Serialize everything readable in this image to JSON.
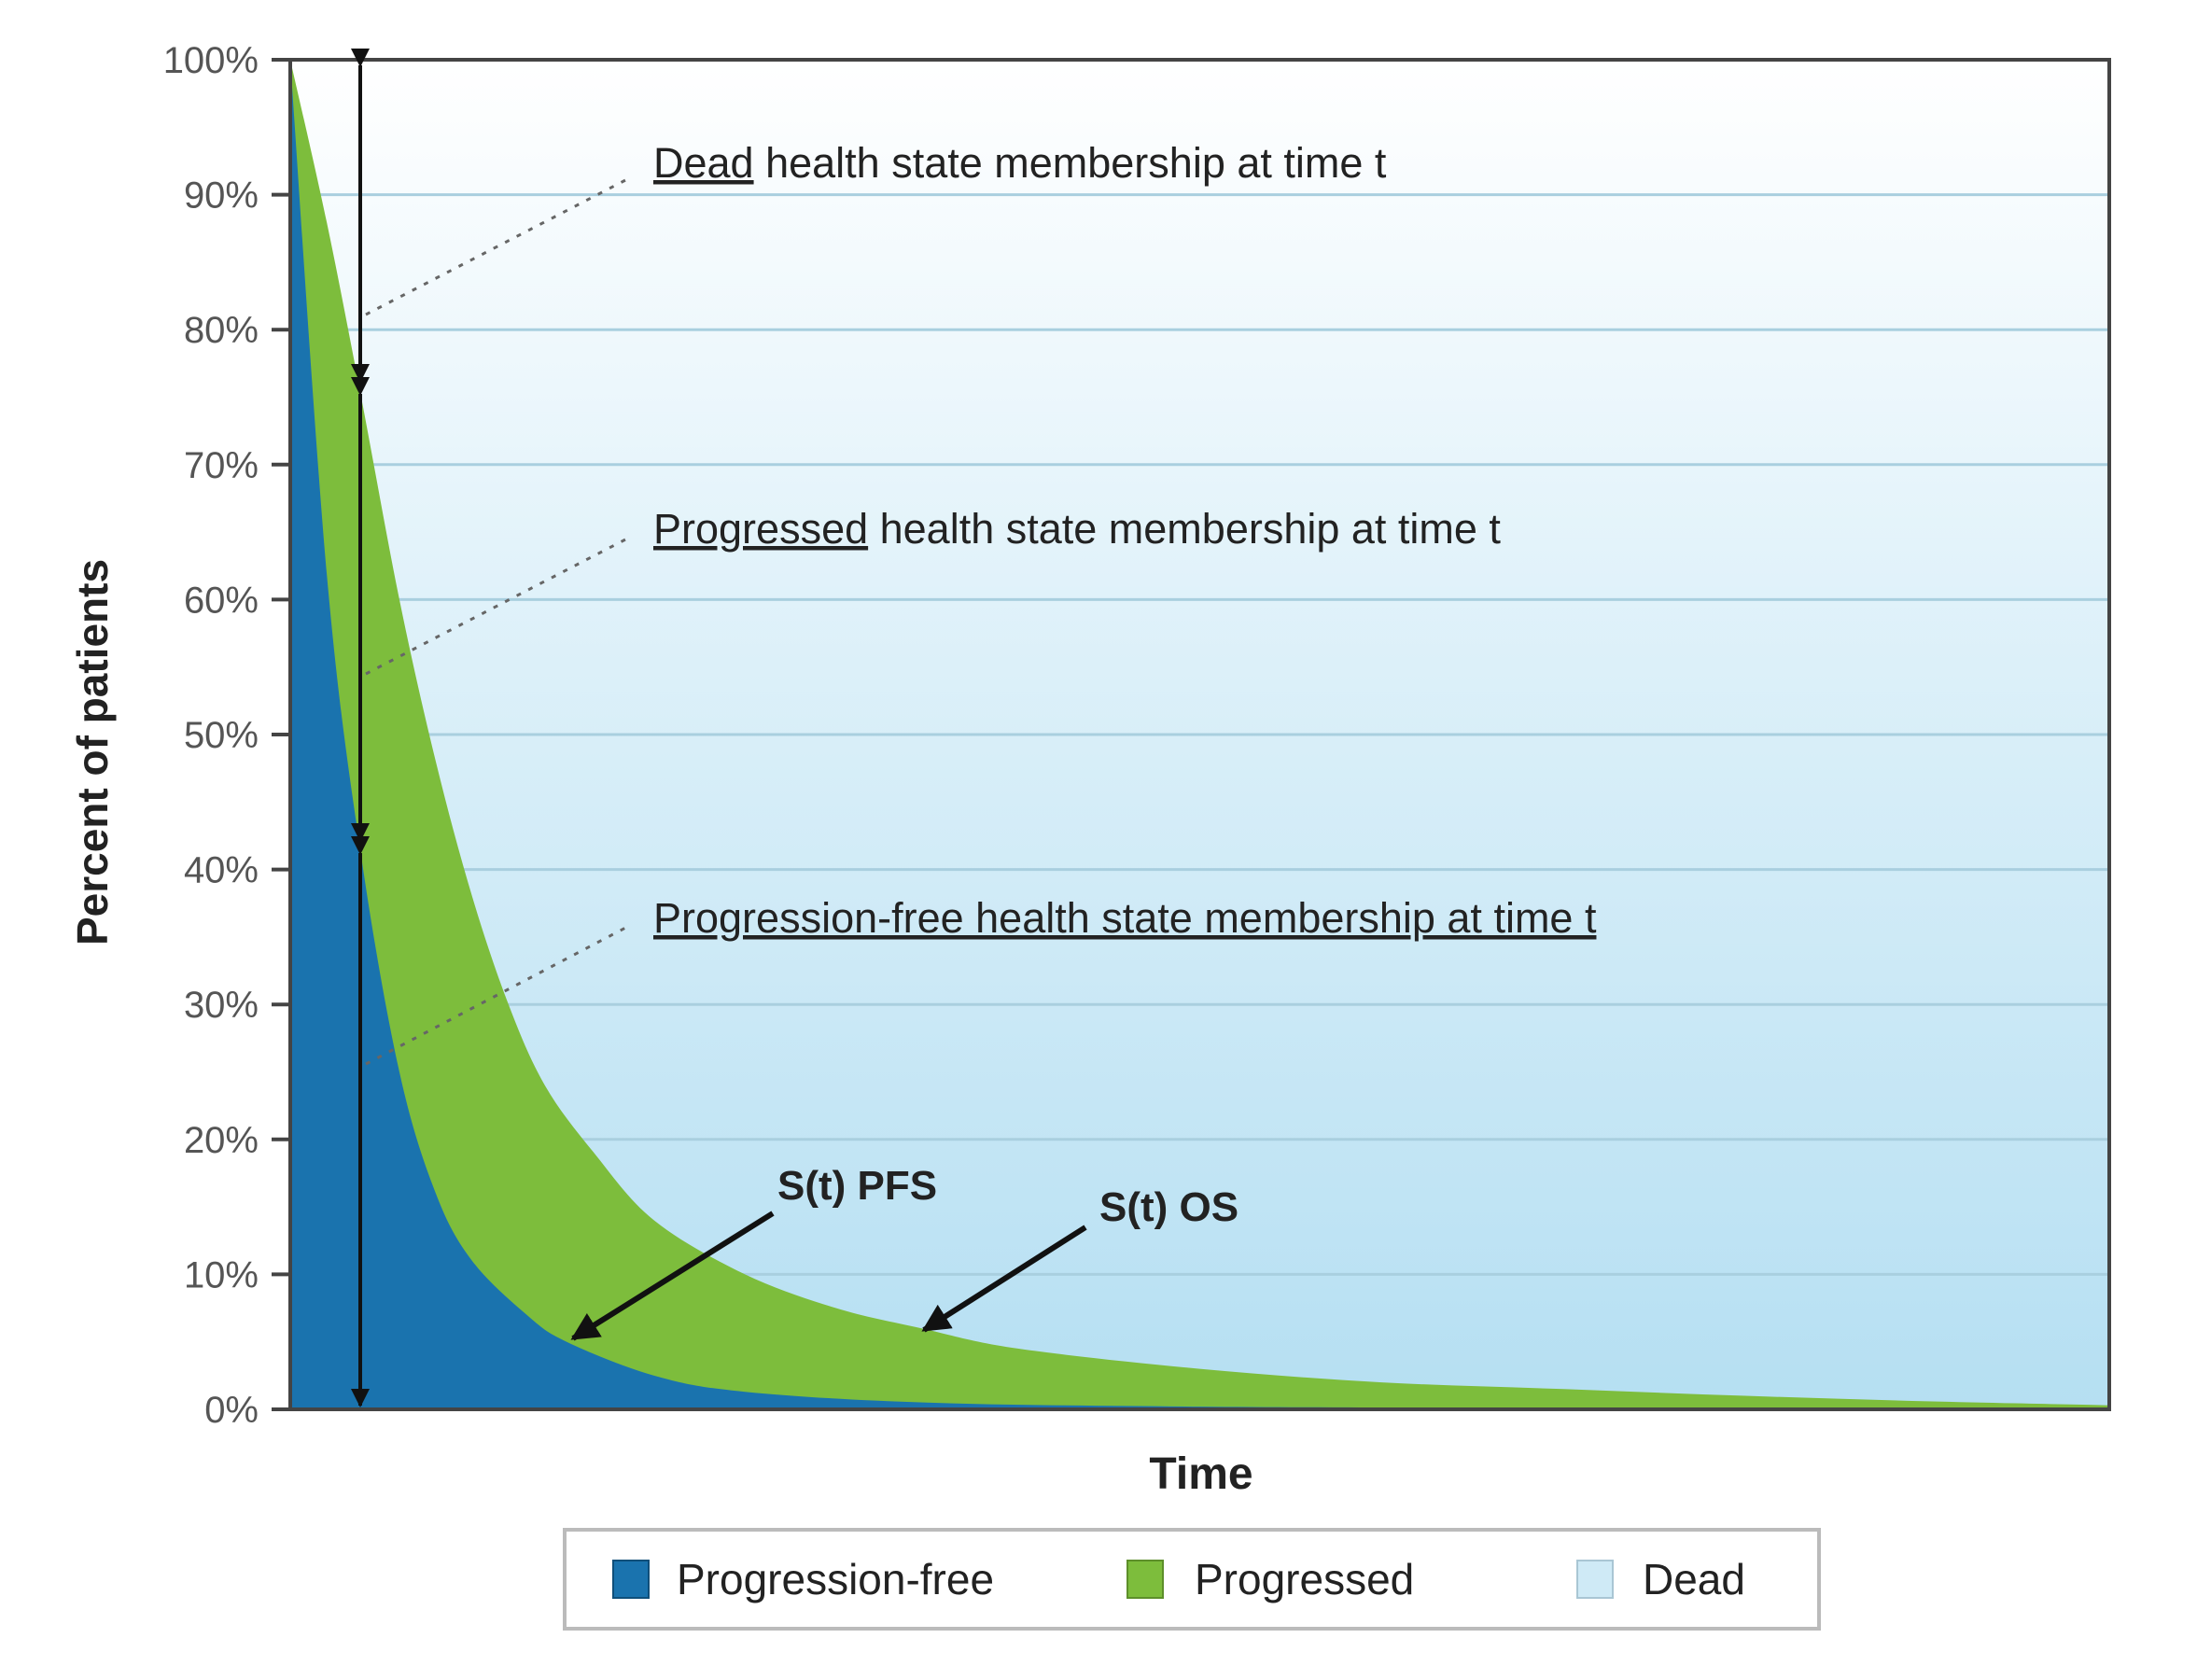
{
  "chart_data": {
    "type": "area",
    "stacked": false,
    "title": "",
    "xlabel": "Time",
    "ylabel": "Percent of patients",
    "ylim": [
      0,
      100
    ],
    "xlim": [
      0,
      1
    ],
    "x_ticks_shown": false,
    "yticks": [
      "0%",
      "10%",
      "20%",
      "30%",
      "40%",
      "50%",
      "60%",
      "70%",
      "80%",
      "90%",
      "100%"
    ],
    "grid": "horizontal",
    "legend_position": "bottom",
    "colors": {
      "progression_free": "#1a73ae",
      "progressed": "#7dbd3c",
      "dead": "#bfe3f3"
    },
    "series": [
      {
        "name": "Progressed",
        "curve_label": "S(t) OS",
        "x": [
          0,
          0.02,
          0.039,
          0.06,
          0.08,
          0.1,
          0.12,
          0.14,
          0.167,
          0.2,
          0.25,
          0.3,
          0.347,
          0.4,
          0.5,
          0.6,
          0.7,
          0.8,
          0.9,
          1.0
        ],
        "y": [
          100,
          88,
          75,
          60,
          48,
          38,
          30,
          24,
          19,
          14,
          10,
          7.5,
          6,
          4.5,
          3,
          2,
          1.5,
          1,
          0.6,
          0.3
        ]
      },
      {
        "name": "Progression-free",
        "curve_label": "S(t) PFS",
        "x": [
          0,
          0.02,
          0.039,
          0.06,
          0.08,
          0.1,
          0.13,
          0.152,
          0.2,
          0.25,
          0.35,
          0.5,
          0.7,
          1.0
        ],
        "y": [
          100,
          62,
          41,
          25,
          16,
          11,
          7,
          5,
          2.5,
          1.3,
          0.5,
          0.2,
          0.1,
          0
        ]
      }
    ],
    "legend": [
      {
        "label": "Progression-free",
        "color": "#1a73ae"
      },
      {
        "label": "Progressed",
        "color": "#7dbd3c"
      },
      {
        "label": "Dead",
        "color": "#cfeaf6"
      }
    ],
    "annotations": {
      "dead": {
        "underlined": "Dead",
        "rest": " health state membership at time t"
      },
      "progressed": {
        "underlined": "Progressed",
        "rest": " health state membership at time t"
      },
      "progression_free": {
        "underlined": "Progression-free health state membership at time t",
        "rest": ""
      },
      "pfs_label": "S(t) PFS",
      "os_label": "S(t) OS"
    }
  }
}
